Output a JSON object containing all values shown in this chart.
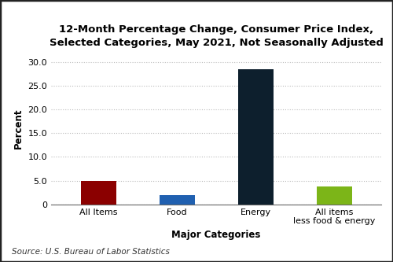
{
  "categories": [
    "All Items",
    "Food",
    "Energy",
    "All items\nless food & energy"
  ],
  "values": [
    4.9,
    2.0,
    28.5,
    3.8
  ],
  "bar_colors": [
    "#8B0000",
    "#2060B0",
    "#0D1F2D",
    "#7CB518"
  ],
  "title": "12-Month Percentage Change, Consumer Price Index,\nSelected Categories, May 2021, Not Seasonally Adjusted",
  "xlabel": "Major Categories",
  "ylabel": "Percent",
  "ylim": [
    0,
    32
  ],
  "yticks": [
    0,
    5.0,
    10.0,
    15.0,
    20.0,
    25.0,
    30.0
  ],
  "ytick_labels": [
    "0",
    "5.0",
    "10.0",
    "15.0",
    "20.0",
    "25.0",
    "30.0"
  ],
  "source_text": "Source: U.S. Bureau of Labor Statistics",
  "background_color": "#FFFFFF",
  "title_fontsize": 9.5,
  "axis_label_fontsize": 8.5,
  "tick_fontsize": 8,
  "source_fontsize": 7.5,
  "bar_width": 0.45,
  "grid_color": "#BBBBBB",
  "border_color": "#222222",
  "spine_color": "#666666"
}
